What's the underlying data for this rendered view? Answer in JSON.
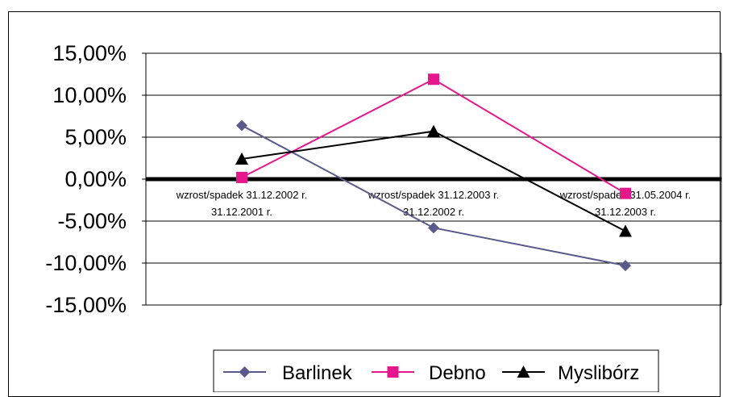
{
  "chart_data": {
    "type": "line",
    "title": "",
    "xlabel": "",
    "ylabel": "",
    "ylim": [
      -15,
      15
    ],
    "y_ticks": [
      "15,00%",
      "10,00%",
      "5,00%",
      "0,00%",
      "-5,00%",
      "-10,00%",
      "-15,00%"
    ],
    "y_tick_values": [
      15,
      10,
      5,
      0,
      -5,
      -10,
      -15
    ],
    "grid": true,
    "legend_position": "bottom",
    "categories": [
      [
        "wzrost/spadek 31.12.2002 r.",
        "31.12.2001 r."
      ],
      [
        "wzrost/spadek 31.12.2003 r.",
        "31.12.2002 r."
      ],
      [
        "wzrost/spadek 31.05.2004 r.",
        "31.12.2003 r."
      ]
    ],
    "series": [
      {
        "name": "Barlinek",
        "values": [
          6.4,
          -5.8,
          -10.3
        ],
        "color": "#5a5a8c",
        "marker": "diamond"
      },
      {
        "name": "Debno",
        "values": [
          0.2,
          11.9,
          -1.7
        ],
        "color": "#e6168c",
        "marker": "square"
      },
      {
        "name": "Myslibórz",
        "values": [
          2.4,
          5.7,
          -6.2
        ],
        "color": "#000000",
        "marker": "triangle"
      }
    ]
  }
}
